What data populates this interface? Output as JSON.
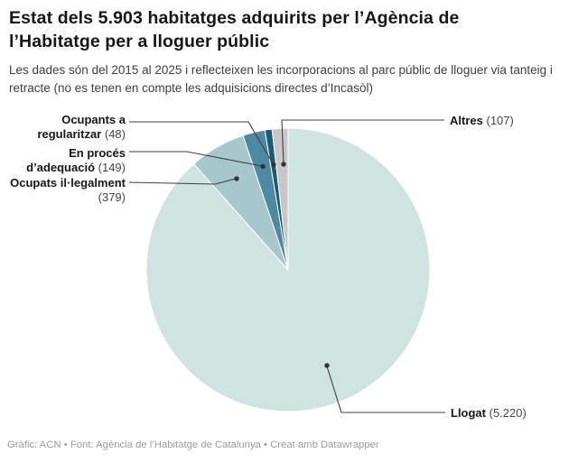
{
  "header": {
    "title": "Estat dels 5.903 habitatges adquirits per l’Agència de l’Habitatge per a lloguer públic",
    "subtitle": "Les dades són del 2015 al 2025 i reflecteixen les incorporacions al parc públic de lloguer via tanteig i retracte (no es tenen en compte les adquisicions directes d’Incasòl)"
  },
  "chart_data": {
    "type": "pie",
    "title": "Estat dels 5.903 habitatges adquirits per l’Agència de l’Habitatge per a lloguer públic",
    "total": 5903,
    "start_angle_deg": 0,
    "direction": "clockwise",
    "legend_position": "callout-labels",
    "slices": [
      {
        "label": "Llogat",
        "value": 5220,
        "value_display": "(5.220)",
        "color": "#cfe3e0"
      },
      {
        "label": "Ocupats il·legalment",
        "value": 379,
        "value_display": "(379)",
        "color": "#a6c8cd"
      },
      {
        "label": "En procés d’adequació",
        "value": 149,
        "value_display": "(149)",
        "color": "#4d89a0"
      },
      {
        "label": "Ocupants a regularitzar",
        "value": 48,
        "value_display": "(48)",
        "color": "#175b76"
      },
      {
        "label": "Altres",
        "value": 107,
        "value_display": "(107)",
        "color": "#c9c7c8"
      }
    ]
  },
  "footer": {
    "byline": "Gràfic: ACN • Font: Agència de l’Habitatge de Catalunya • Creat amb Datawrapper"
  }
}
